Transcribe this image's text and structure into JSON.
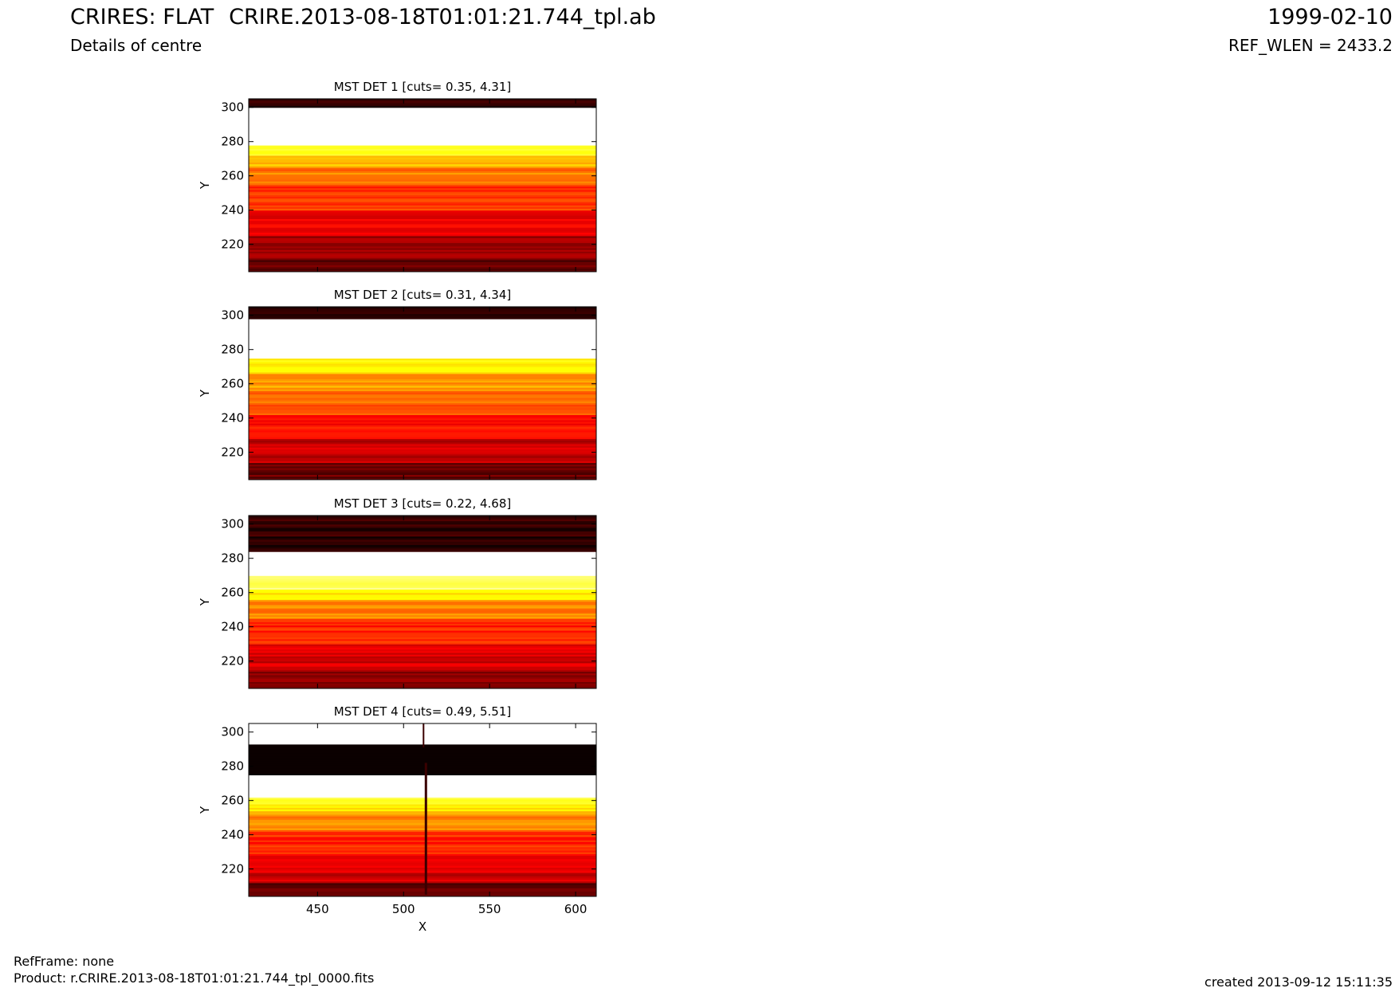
{
  "header": {
    "title_left": "CRIRES: FLAT",
    "subtitle_left": "Details of centre",
    "title_center": "CRIRE.2013-08-18T01:01:21.744_tpl.ab",
    "title_right": "1999-02-10",
    "subtitle_right": "REF_WLEN = 2433.2"
  },
  "footer": {
    "refframe": "RefFrame: none",
    "product": "Product: r.CRIRE.2013-08-18T01:01:21.744_tpl_0000.fits",
    "created": "created 2013-09-12 15:11:35"
  },
  "colors": {
    "colormap": "hot",
    "dark_red": "#800000",
    "darkest": "#4d0000",
    "axis": "#000000"
  },
  "chart_data": [
    {
      "type": "heatmap",
      "title": "MST DET 1 [cuts= 0.35, 4.31]",
      "xlabel": "",
      "ylabel": "Y",
      "xlim": [
        410,
        612
      ],
      "ylim": [
        204,
        305
      ],
      "xticks": [
        450,
        500,
        550,
        600
      ],
      "yticks": [
        220,
        240,
        260,
        280,
        300
      ],
      "show_xticklabels": false,
      "bands": [
        {
          "y0": 204,
          "y1": 212,
          "level": 0.12
        },
        {
          "y0": 212,
          "y1": 225,
          "level": 0.22
        },
        {
          "y0": 225,
          "y1": 240,
          "level": 0.34
        },
        {
          "y0": 240,
          "y1": 255,
          "level": 0.44
        },
        {
          "y0": 255,
          "y1": 265,
          "level": 0.54
        },
        {
          "y0": 265,
          "y1": 272,
          "level": 0.66
        },
        {
          "y0": 272,
          "y1": 278,
          "level": 0.76
        },
        {
          "y0": 278,
          "y1": 300,
          "level": 1.0
        },
        {
          "y0": 300,
          "y1": 305,
          "level": 0.05
        }
      ]
    },
    {
      "type": "heatmap",
      "title": "MST DET 2 [cuts= 0.31, 4.34]",
      "xlabel": "",
      "ylabel": "Y",
      "xlim": [
        410,
        612
      ],
      "ylim": [
        204,
        305
      ],
      "xticks": [
        450,
        500,
        550,
        600
      ],
      "yticks": [
        220,
        240,
        260,
        280,
        300
      ],
      "show_xticklabels": false,
      "bands": [
        {
          "y0": 204,
          "y1": 214,
          "level": 0.14
        },
        {
          "y0": 214,
          "y1": 228,
          "level": 0.28
        },
        {
          "y0": 228,
          "y1": 242,
          "level": 0.38
        },
        {
          "y0": 242,
          "y1": 256,
          "level": 0.5
        },
        {
          "y0": 256,
          "y1": 266,
          "level": 0.6
        },
        {
          "y0": 266,
          "y1": 275,
          "level": 0.72
        },
        {
          "y0": 275,
          "y1": 298,
          "level": 1.0
        },
        {
          "y0": 298,
          "y1": 305,
          "level": 0.05
        }
      ]
    },
    {
      "type": "heatmap",
      "title": "MST DET 3 [cuts= 0.22, 4.68]",
      "xlabel": "",
      "ylabel": "Y",
      "xlim": [
        410,
        612
      ],
      "ylim": [
        204,
        305
      ],
      "xticks": [
        450,
        500,
        550,
        600
      ],
      "yticks": [
        220,
        240,
        260,
        280,
        300
      ],
      "show_xticklabels": false,
      "bands": [
        {
          "y0": 204,
          "y1": 214,
          "level": 0.18
        },
        {
          "y0": 214,
          "y1": 230,
          "level": 0.3
        },
        {
          "y0": 230,
          "y1": 245,
          "level": 0.42
        },
        {
          "y0": 245,
          "y1": 256,
          "level": 0.55
        },
        {
          "y0": 256,
          "y1": 262,
          "level": 0.7
        },
        {
          "y0": 262,
          "y1": 270,
          "level": 0.86
        },
        {
          "y0": 270,
          "y1": 284,
          "level": 1.0
        },
        {
          "y0": 284,
          "y1": 305,
          "level": 0.05
        }
      ]
    },
    {
      "type": "heatmap",
      "title": "MST DET 4 [cuts= 0.49, 5.51]",
      "xlabel": "X",
      "ylabel": "Y",
      "xlim": [
        410,
        612
      ],
      "ylim": [
        204,
        305
      ],
      "xticks": [
        450,
        500,
        550,
        600
      ],
      "yticks": [
        220,
        240,
        260,
        280,
        300
      ],
      "show_xticklabels": true,
      "bands": [
        {
          "y0": 204,
          "y1": 212,
          "level": 0.14
        },
        {
          "y0": 212,
          "y1": 228,
          "level": 0.3
        },
        {
          "y0": 228,
          "y1": 242,
          "level": 0.42
        },
        {
          "y0": 242,
          "y1": 252,
          "level": 0.55
        },
        {
          "y0": 252,
          "y1": 258,
          "level": 0.68
        },
        {
          "y0": 258,
          "y1": 262,
          "level": 0.82
        },
        {
          "y0": 262,
          "y1": 275,
          "level": 1.0
        },
        {
          "y0": 275,
          "y1": 293,
          "level": 0.0
        },
        {
          "y0": 293,
          "y1": 305,
          "level": 1.0
        }
      ],
      "defect_column_x": 513
    }
  ]
}
